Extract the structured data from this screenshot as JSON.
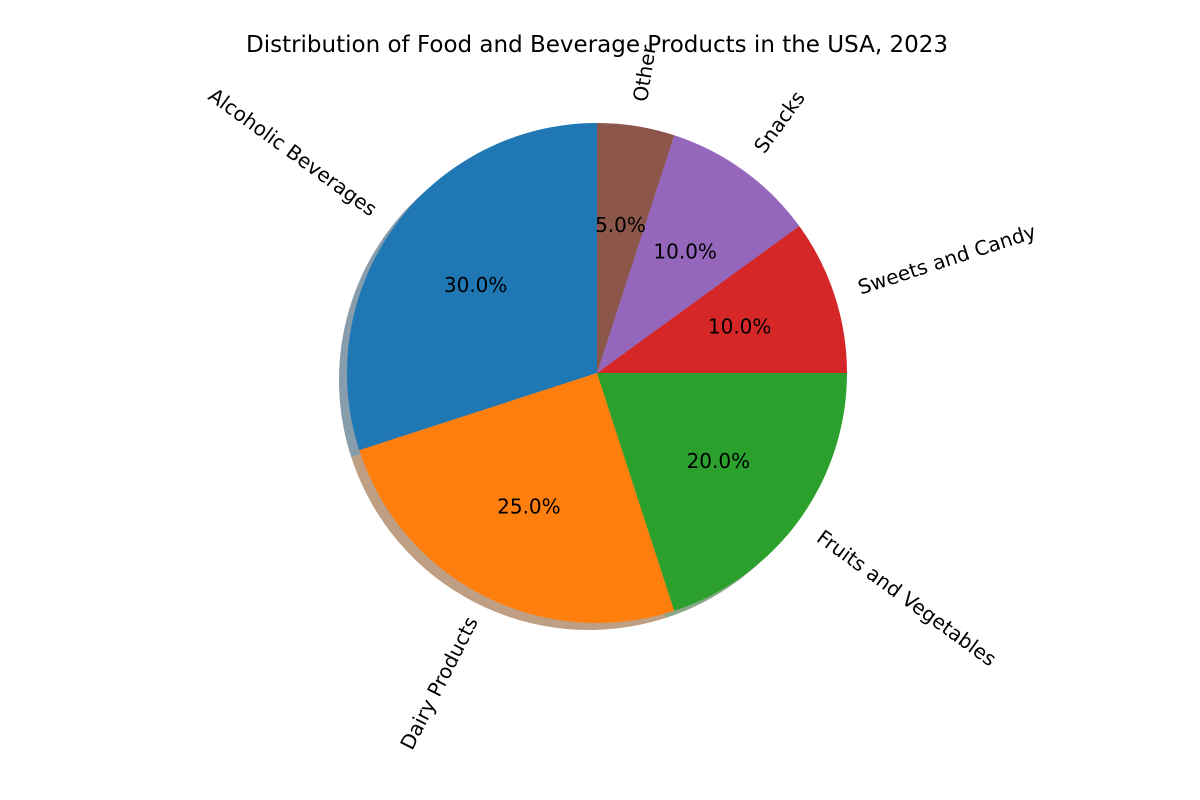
{
  "chart_data": {
    "type": "pie",
    "title": "Distribution of Food and Beverage Products in the USA, 2023",
    "categories": [
      "Alcoholic Beverages",
      "Dairy Products",
      "Fruits and Vegetables",
      "Sweets and Candy",
      "Snacks",
      "Other"
    ],
    "values": [
      30,
      25,
      20,
      10,
      10,
      5
    ],
    "percent_labels": [
      "30.0%",
      "25.0%",
      "20.0%",
      "10.0%",
      "10.0%",
      "5.0%"
    ],
    "colors": [
      "#1f77b4",
      "#ff7f0e",
      "#2ca02c",
      "#d62728",
      "#9467bd",
      "#8c564b"
    ],
    "start_angle_deg": 90,
    "direction": "counterclockwise",
    "shadow": true,
    "legend": "none"
  }
}
